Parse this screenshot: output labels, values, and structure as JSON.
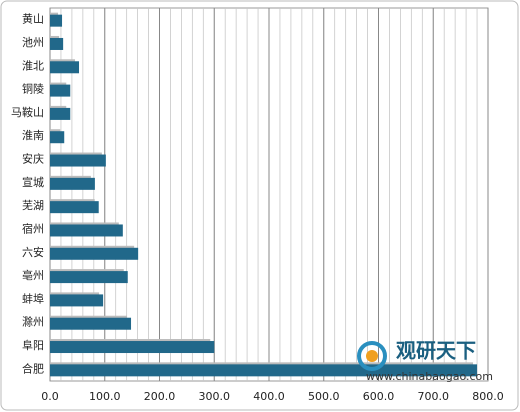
{
  "chart_data": {
    "type": "hbar",
    "categories": [
      "黄山",
      "池州",
      "淮北",
      "铜陵",
      "马鞍山",
      "淮南",
      "安庆",
      "宣城",
      "芜湖",
      "宿州",
      "六安",
      "亳州",
      "蚌埠",
      "滁州",
      "阜阳",
      "合肥"
    ],
    "values": [
      22,
      24,
      53,
      37,
      37,
      26,
      102,
      82,
      89,
      133,
      161,
      142,
      97,
      148,
      300,
      780
    ],
    "color": "#21688a",
    "xlim": [
      0,
      800
    ],
    "xticks": [
      {
        "value": 0,
        "label": "0.0"
      },
      {
        "value": 100,
        "label": "100.0"
      },
      {
        "value": 200,
        "label": "200.0"
      },
      {
        "value": 300,
        "label": "300.0"
      },
      {
        "value": 400,
        "label": "400.0"
      },
      {
        "value": 500,
        "label": "500.0"
      },
      {
        "value": 600,
        "label": "600.0"
      },
      {
        "value": 700,
        "label": "700.0"
      },
      {
        "value": 800,
        "label": "800.0"
      }
    ],
    "grid": true,
    "watermark": {
      "brand": "观研天下",
      "url": "www.chinabaogao.com"
    }
  }
}
